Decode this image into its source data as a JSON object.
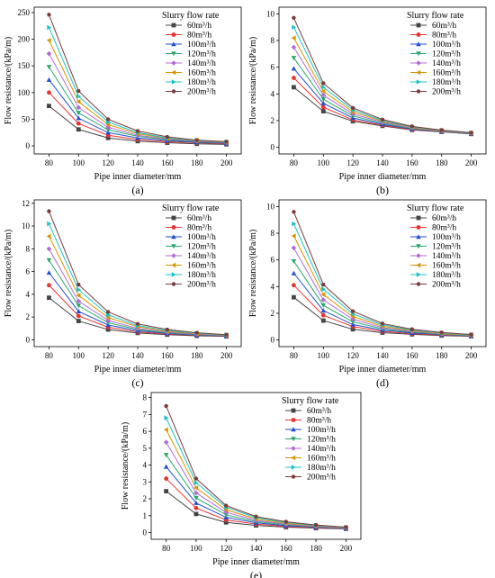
{
  "colors": [
    "#444444",
    "#e8332f",
    "#1f4fd1",
    "#2aa86a",
    "#b36ad6",
    "#d69500",
    "#19c2c9",
    "#7d3a3a"
  ],
  "marker_shapes": [
    "square",
    "circle",
    "triangle-up",
    "triangle-down",
    "diamond",
    "triangle-left",
    "triangle-right",
    "hexagon"
  ],
  "chart_data": [
    {
      "type": "line",
      "label": "(a)",
      "xlabel": "Pipe inner diameter/mm",
      "ylabel": "Flow resistance/(kPa/m)",
      "x": [
        80,
        100,
        120,
        140,
        160,
        180,
        200
      ],
      "xlim": [
        70,
        210
      ],
      "ylim": [
        -15,
        260
      ],
      "yticks": [
        0,
        50,
        100,
        150,
        200,
        250
      ],
      "legend_title": "Slurry flow rate",
      "legend_position": "top-right",
      "grid": false,
      "series": [
        {
          "name": "60m³/h",
          "values": [
            75,
            31,
            15,
            9,
            6,
            4,
            3
          ]
        },
        {
          "name": "80m³/h",
          "values": [
            100,
            42,
            20,
            12,
            8,
            6,
            4
          ]
        },
        {
          "name": "100m³/h",
          "values": [
            124,
            52,
            25,
            15,
            10,
            7,
            5
          ]
        },
        {
          "name": "120m³/h",
          "values": [
            148,
            62,
            30,
            18,
            12,
            8,
            6
          ]
        },
        {
          "name": "140m³/h",
          "values": [
            173,
            72,
            35,
            20,
            13,
            9,
            6.5
          ]
        },
        {
          "name": "160m³/h",
          "values": [
            198,
            83,
            40,
            23,
            14,
            10,
            7
          ]
        },
        {
          "name": "180m³/h",
          "values": [
            222,
            93,
            45,
            25,
            15,
            10.5,
            7.5
          ]
        },
        {
          "name": "200m³/h",
          "values": [
            246,
            103,
            50,
            28,
            17,
            11,
            8
          ]
        }
      ]
    },
    {
      "type": "line",
      "label": "(b)",
      "xlabel": "Pipe inner diameter/mm",
      "ylabel": "Flow resistance/(kPa/m)",
      "x": [
        80,
        100,
        120,
        140,
        160,
        180,
        200
      ],
      "xlim": [
        70,
        210
      ],
      "ylim": [
        -0.5,
        10.5
      ],
      "yticks": [
        0,
        2,
        4,
        6,
        8,
        10
      ],
      "legend_title": "Slurry flow rate",
      "legend_position": "top-right",
      "grid": false,
      "series": [
        {
          "name": "60m³/h",
          "values": [
            4.5,
            2.7,
            1.95,
            1.6,
            1.3,
            1.15,
            1.0
          ]
        },
        {
          "name": "80m³/h",
          "values": [
            5.2,
            3.0,
            2.05,
            1.65,
            1.33,
            1.17,
            1.02
          ]
        },
        {
          "name": "100m³/h",
          "values": [
            5.9,
            3.3,
            2.2,
            1.72,
            1.37,
            1.19,
            1.03
          ]
        },
        {
          "name": "120m³/h",
          "values": [
            6.7,
            3.6,
            2.35,
            1.8,
            1.41,
            1.21,
            1.04
          ]
        },
        {
          "name": "140m³/h",
          "values": [
            7.5,
            3.9,
            2.5,
            1.88,
            1.45,
            1.23,
            1.05
          ]
        },
        {
          "name": "160m³/h",
          "values": [
            8.2,
            4.2,
            2.65,
            1.95,
            1.49,
            1.25,
            1.07
          ]
        },
        {
          "name": "180m³/h",
          "values": [
            9.0,
            4.5,
            2.8,
            2.0,
            1.53,
            1.27,
            1.08
          ]
        },
        {
          "name": "200m³/h",
          "values": [
            9.7,
            4.8,
            2.95,
            2.08,
            1.57,
            1.29,
            1.1
          ]
        }
      ]
    },
    {
      "type": "line",
      "label": "(c)",
      "xlabel": "Pipe inner diameter/mm",
      "ylabel": "Flow resistance/(kPa/m)",
      "x": [
        80,
        100,
        120,
        140,
        160,
        180,
        200
      ],
      "xlim": [
        70,
        210
      ],
      "ylim": [
        -0.6,
        12.3
      ],
      "yticks": [
        0,
        2,
        4,
        6,
        8,
        10,
        12
      ],
      "legend_title": "Slurry flow rate",
      "legend_position": "top-right",
      "grid": false,
      "series": [
        {
          "name": "60m³/h",
          "values": [
            3.7,
            1.65,
            0.9,
            0.6,
            0.45,
            0.35,
            0.3
          ]
        },
        {
          "name": "80m³/h",
          "values": [
            4.8,
            2.1,
            1.1,
            0.7,
            0.5,
            0.4,
            0.33
          ]
        },
        {
          "name": "100m³/h",
          "values": [
            5.9,
            2.5,
            1.3,
            0.8,
            0.56,
            0.43,
            0.35
          ]
        },
        {
          "name": "120m³/h",
          "values": [
            7.0,
            3.0,
            1.5,
            0.9,
            0.62,
            0.47,
            0.37
          ]
        },
        {
          "name": "140m³/h",
          "values": [
            8.0,
            3.4,
            1.7,
            1.0,
            0.68,
            0.5,
            0.39
          ]
        },
        {
          "name": "160m³/h",
          "values": [
            9.1,
            3.9,
            1.95,
            1.15,
            0.75,
            0.54,
            0.41
          ]
        },
        {
          "name": "180m³/h",
          "values": [
            10.2,
            4.4,
            2.2,
            1.25,
            0.82,
            0.58,
            0.43
          ]
        },
        {
          "name": "200m³/h",
          "values": [
            11.3,
            4.85,
            2.45,
            1.4,
            0.9,
            0.62,
            0.45
          ]
        }
      ]
    },
    {
      "type": "line",
      "label": "(d)",
      "xlabel": "Pipe inner diameter/mm",
      "ylabel": "Flow resistance/(kPa/m)",
      "x": [
        80,
        100,
        120,
        140,
        160,
        180,
        200
      ],
      "xlim": [
        70,
        210
      ],
      "ylim": [
        -0.5,
        10.5
      ],
      "yticks": [
        0,
        2,
        4,
        6,
        8,
        10
      ],
      "legend_title": "Slurry flow rate",
      "legend_position": "top-right",
      "grid": false,
      "series": [
        {
          "name": "60m³/h",
          "values": [
            3.2,
            1.45,
            0.8,
            0.55,
            0.42,
            0.33,
            0.27
          ]
        },
        {
          "name": "80m³/h",
          "values": [
            4.1,
            1.85,
            1.0,
            0.64,
            0.48,
            0.36,
            0.29
          ]
        },
        {
          "name": "100m³/h",
          "values": [
            5.0,
            2.2,
            1.15,
            0.74,
            0.53,
            0.4,
            0.31
          ]
        },
        {
          "name": "120m³/h",
          "values": [
            5.9,
            2.6,
            1.35,
            0.84,
            0.59,
            0.43,
            0.33
          ]
        },
        {
          "name": "140m³/h",
          "values": [
            6.9,
            3.0,
            1.55,
            0.93,
            0.64,
            0.46,
            0.35
          ]
        },
        {
          "name": "160m³/h",
          "values": [
            7.8,
            3.4,
            1.75,
            1.03,
            0.7,
            0.49,
            0.37
          ]
        },
        {
          "name": "180m³/h",
          "values": [
            8.7,
            3.8,
            1.95,
            1.13,
            0.75,
            0.53,
            0.39
          ]
        },
        {
          "name": "200m³/h",
          "values": [
            9.6,
            4.15,
            2.15,
            1.23,
            0.8,
            0.56,
            0.41
          ]
        }
      ]
    },
    {
      "type": "line",
      "label": "(e)",
      "xlabel": "Pipe inner diameter/mm",
      "ylabel": "Flow resistance/(kPa/m)",
      "x": [
        80,
        100,
        120,
        140,
        160,
        180,
        200
      ],
      "xlim": [
        70,
        210
      ],
      "ylim": [
        -0.4,
        8.3
      ],
      "yticks": [
        0,
        1,
        2,
        3,
        4,
        5,
        6,
        7,
        8
      ],
      "legend_title": "Slurry flow rate",
      "legend_position": "top-right",
      "grid": false,
      "series": [
        {
          "name": "60m³/h",
          "values": [
            2.45,
            1.1,
            0.6,
            0.42,
            0.32,
            0.26,
            0.22
          ]
        },
        {
          "name": "80m³/h",
          "values": [
            3.2,
            1.45,
            0.75,
            0.5,
            0.36,
            0.29,
            0.24
          ]
        },
        {
          "name": "100m³/h",
          "values": [
            3.9,
            1.75,
            0.9,
            0.58,
            0.41,
            0.32,
            0.25
          ]
        },
        {
          "name": "120m³/h",
          "values": [
            4.6,
            2.05,
            1.05,
            0.65,
            0.46,
            0.35,
            0.27
          ]
        },
        {
          "name": "140m³/h",
          "values": [
            5.35,
            2.35,
            1.2,
            0.72,
            0.5,
            0.37,
            0.28
          ]
        },
        {
          "name": "160m³/h",
          "values": [
            6.1,
            2.65,
            1.35,
            0.8,
            0.55,
            0.4,
            0.3
          ]
        },
        {
          "name": "180m³/h",
          "values": [
            6.8,
            2.95,
            1.5,
            0.88,
            0.6,
            0.42,
            0.31
          ]
        },
        {
          "name": "200m³/h",
          "values": [
            7.5,
            3.2,
            1.6,
            0.95,
            0.64,
            0.45,
            0.32
          ]
        }
      ]
    }
  ]
}
